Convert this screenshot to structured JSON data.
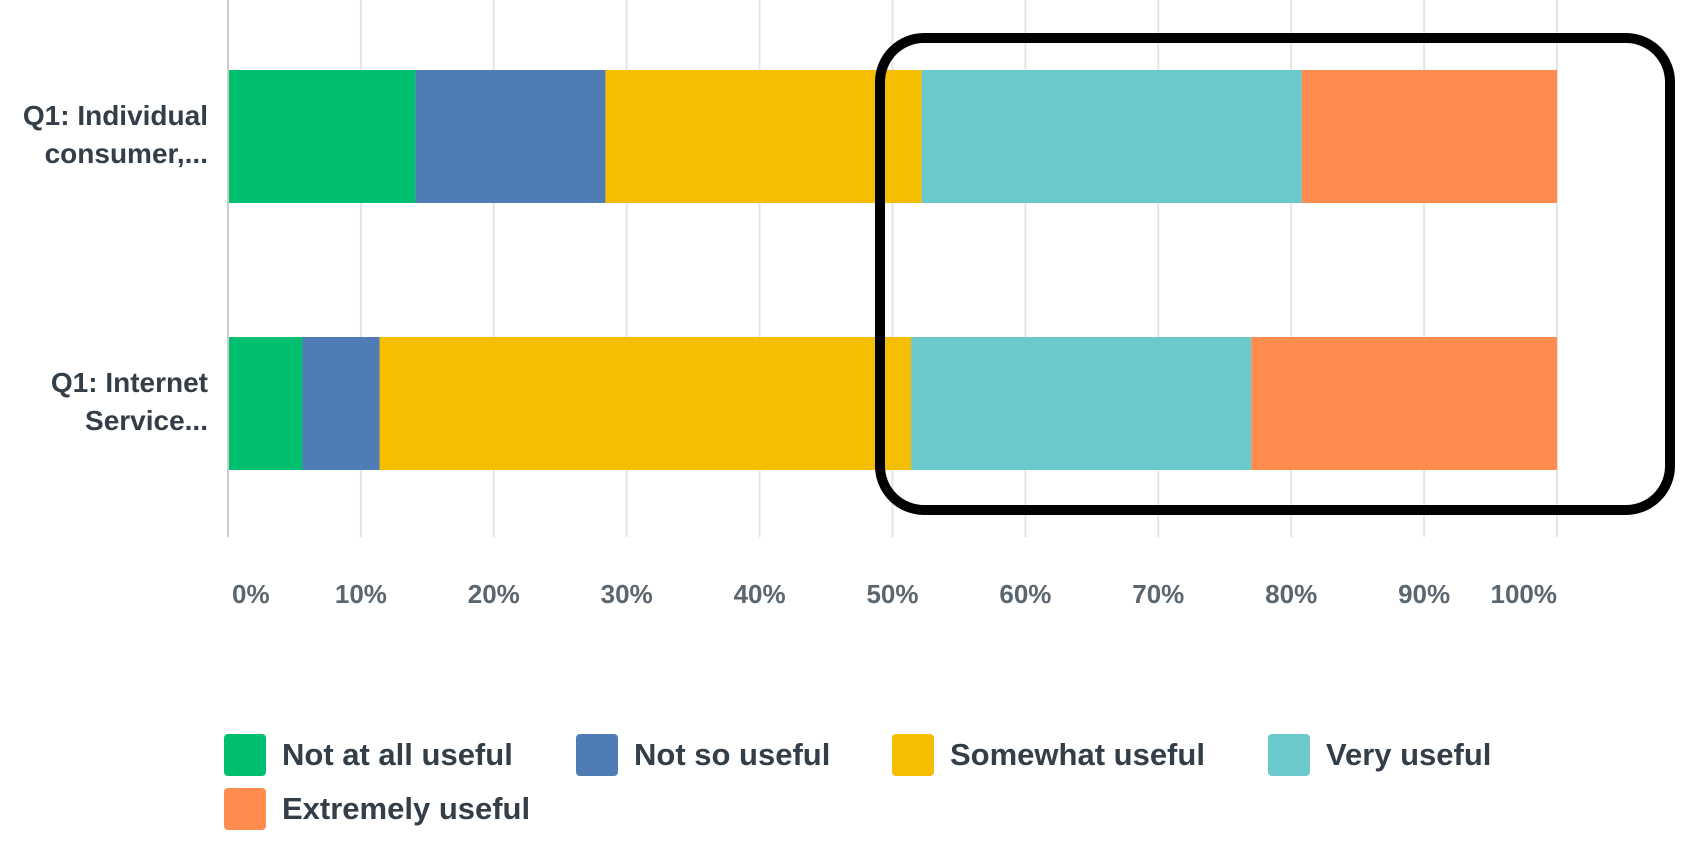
{
  "chart_data": {
    "type": "bar",
    "orientation": "horizontal",
    "stacked": true,
    "categories": [
      [
        "Q1: Individual",
        "consumer,..."
      ],
      [
        "Q1: Internet",
        "Service..."
      ]
    ],
    "series": [
      {
        "name": "Not at all useful",
        "color": "#00BF6F",
        "values": [
          14.1,
          5.6
        ]
      },
      {
        "name": "Not so useful",
        "color": "#507CB6",
        "values": [
          14.3,
          5.8
        ]
      },
      {
        "name": "Somewhat useful",
        "color": "#F6BE00",
        "values": [
          23.8,
          40.0
        ]
      },
      {
        "name": "Very useful",
        "color": "#6BC8CD",
        "values": [
          28.6,
          25.6
        ]
      },
      {
        "name": "Extremely useful",
        "color": "#FF8B4F",
        "values": [
          19.2,
          23.0
        ]
      }
    ],
    "xlim": [
      0,
      100
    ],
    "xticks": [
      "0%",
      "10%",
      "20%",
      "30%",
      "40%",
      "50%",
      "60%",
      "70%",
      "80%",
      "90%",
      "100%"
    ],
    "grid": true,
    "legend_position": "bottom",
    "highlight_box": {
      "color": "#000000"
    },
    "colors": {
      "grid": "#E5E5E5",
      "axis": "#CCCCCC",
      "label": "#333E48",
      "tick": "#5A6670"
    }
  }
}
